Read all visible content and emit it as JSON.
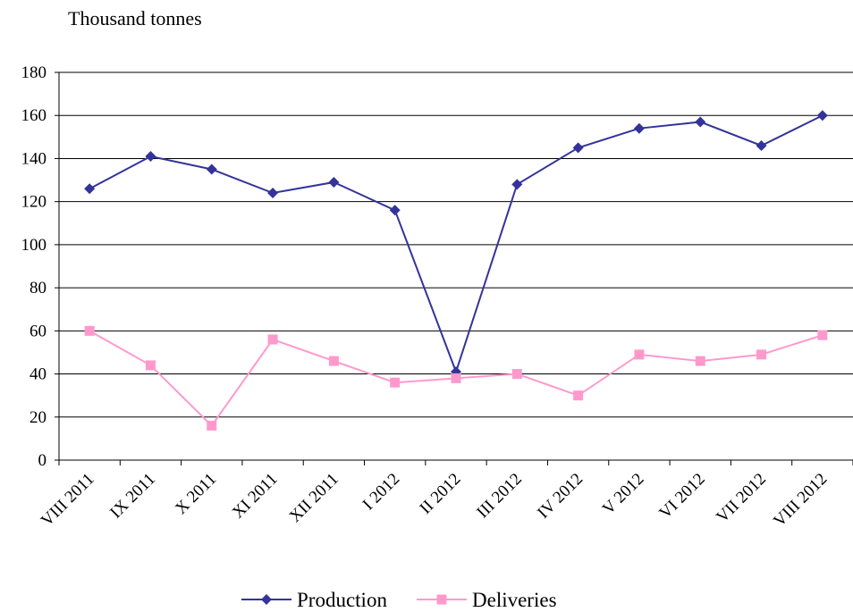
{
  "chart_data": {
    "type": "line",
    "title": "",
    "ylabel": "Thousand tonnes",
    "xlabel": "",
    "categories": [
      "VIII 2011",
      "IX 2011",
      "X 2011",
      "XI 2011",
      "XII 2011",
      "I 2012",
      "II 2012",
      "III 2012",
      "IV 2012",
      "V 2012",
      "VI 2012",
      "VII 2012",
      "VIII 2012"
    ],
    "ylim": [
      0,
      180
    ],
    "yticks": [
      0,
      20,
      40,
      60,
      80,
      100,
      120,
      140,
      160,
      180
    ],
    "grid": true,
    "legend_position": "bottom",
    "series": [
      {
        "name": "Production",
        "color": "#333399",
        "marker": "diamond",
        "values": [
          126,
          141,
          135,
          124,
          129,
          116,
          41,
          128,
          145,
          154,
          157,
          146,
          160
        ]
      },
      {
        "name": "Deliveries",
        "color": "#FF99CC",
        "marker": "square",
        "values": [
          60,
          44,
          16,
          56,
          46,
          36,
          38,
          40,
          30,
          49,
          46,
          49,
          58
        ]
      }
    ]
  }
}
